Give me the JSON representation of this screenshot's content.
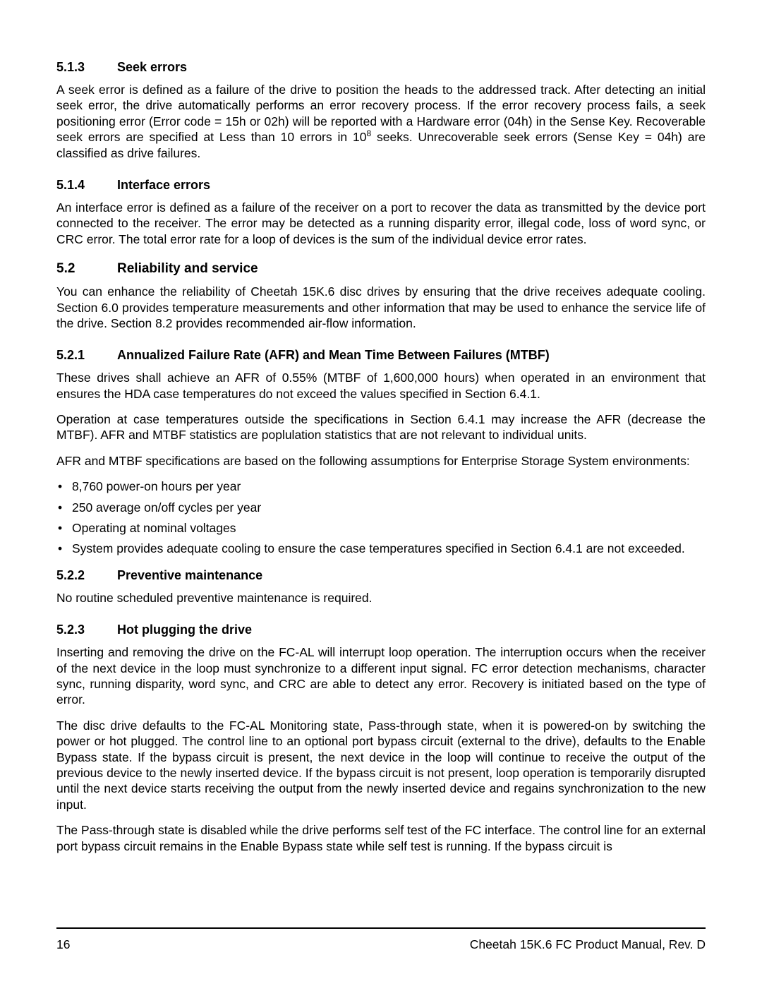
{
  "sections": {
    "s513": {
      "num": "5.1.3",
      "title": "Seek errors",
      "para_pre": "A seek error is defined as a failure of the drive to position the heads to the addressed track. After detecting an initial seek error, the drive automatically performs an error recovery process. If the error recovery process fails, a seek positioning error (Error code = 15h or 02h) will be reported with a Hardware error (04h) in the Sense Key. Recoverable seek errors are specified at Less than 10 errors in 10",
      "para_sup": "8",
      "para_post": " seeks. Unrecoverable seek errors (Sense Key = 04h) are classified as drive failures."
    },
    "s514": {
      "num": "5.1.4",
      "title": "Interface errors",
      "para": "An interface error is defined as a failure of the receiver on a port to recover the data as transmitted by the device port connected to the receiver. The error may be detected as a running disparity error, illegal code, loss of word sync, or CRC error. The total error rate for a loop of devices is the sum of the individual device error rates."
    },
    "s52": {
      "num": "5.2",
      "title": "Reliability and service",
      "para": "You can enhance the reliability of Cheetah 15K.6 disc drives by ensuring that the drive receives adequate cooling. Section 6.0 provides temperature measurements and other information that may be used to enhance the service life of the drive. Section 8.2 provides recommended air-flow information."
    },
    "s521": {
      "num": "5.2.1",
      "title": "Annualized Failure Rate (AFR) and Mean Time Between Failures (MTBF)",
      "para1": "These drives shall achieve an AFR of 0.55% (MTBF of 1,600,000 hours) when operated in an environment that ensures the HDA case temperatures do not exceed the values specified in Section 6.4.1.",
      "para2": "Operation at case temperatures outside the specifications in Section 6.4.1 may increase the AFR (decrease the MTBF). AFR and MTBF statistics are poplulation statistics that are not relevant to individual units.",
      "para3": "AFR and MTBF specifications are based on the following assumptions for Enterprise Storage System environments:",
      "bullets": [
        "8,760 power-on hours per year",
        "250 average on/off cycles per year",
        "Operating at nominal voltages",
        "System provides adequate cooling to ensure the case temperatures specified in Section 6.4.1 are not exceeded."
      ]
    },
    "s522": {
      "num": "5.2.2",
      "title": "Preventive maintenance",
      "para": "No routine scheduled preventive maintenance is required."
    },
    "s523": {
      "num": "5.2.3",
      "title": "Hot plugging the drive",
      "para1": "Inserting and removing the drive on the FC-AL will interrupt loop operation. The interruption occurs when the receiver of the next device in the loop must synchronize to a different input signal. FC error detection mechanisms, character sync, running disparity, word sync, and CRC are able to detect any error. Recovery is initiated based on the type of error.",
      "para2": "The disc drive defaults to the FC-AL Monitoring state, Pass-through state, when it is powered-on by switching the power or hot plugged. The control line to an optional port bypass circuit (external to the drive), defaults to the Enable Bypass state. If the bypass circuit is present, the next device in the loop will continue to receive the output of the previous device to the newly inserted device. If the bypass circuit is not present, loop operation is temporarily disrupted until the next device starts receiving the output from the newly inserted device and regains synchronization to the new input.",
      "para3": "The Pass-through state is disabled while the drive performs self test of the FC interface. The control line for an external port bypass circuit remains in the Enable Bypass state while self test is running. If the bypass circuit is"
    }
  },
  "footer": {
    "page": "16",
    "doc": "Cheetah 15K.6 FC Product Manual, Rev. D"
  }
}
